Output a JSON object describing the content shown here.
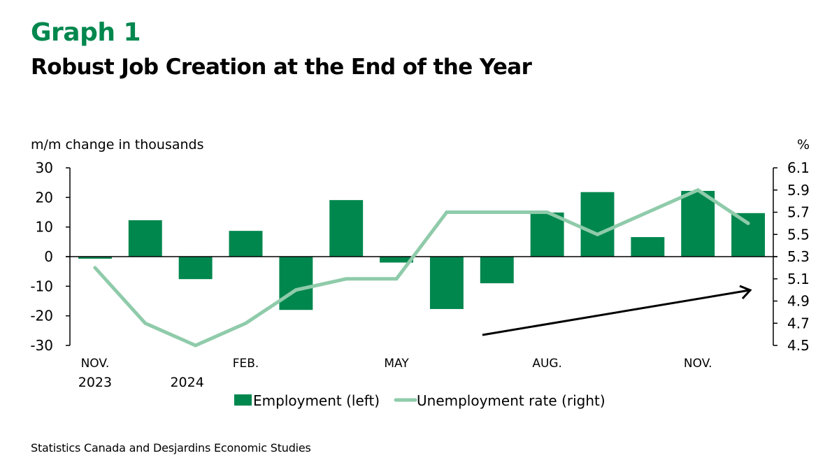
{
  "header": {
    "label": "Graph 1",
    "title": "Robust Job Creation at the End of the Year"
  },
  "source": "Statistics Canada and Desjardins Economic Studies",
  "colors": {
    "bars": "#00874E",
    "line": "#8FCBAA",
    "title_accent": "#00874E"
  },
  "chart_data": {
    "type": "bar+line",
    "title": "Robust Job Creation at the End of the Year",
    "categories": [
      "Nov 2023",
      "Dec 2023",
      "Jan 2024",
      "Feb 2024",
      "Mar 2024",
      "Apr 2024",
      "May 2024",
      "Jun 2024",
      "Jul 2024",
      "Aug 2024",
      "Sep 2024",
      "Oct 2024",
      "Nov 2024",
      "Dec 2024"
    ],
    "x_tick_labels": [
      {
        "index": 0,
        "lines": [
          "NOV.",
          "2023"
        ]
      },
      {
        "index": 2,
        "lines": [
          "",
          "2024"
        ]
      },
      {
        "index": 3,
        "lines": [
          "FEB.",
          ""
        ]
      },
      {
        "index": 6,
        "lines": [
          "MAY",
          ""
        ]
      },
      {
        "index": 9,
        "lines": [
          "AUG.",
          ""
        ]
      },
      {
        "index": 12,
        "lines": [
          "NOV.",
          ""
        ]
      }
    ],
    "series": [
      {
        "name": "Employment (left)",
        "type": "bar",
        "axis": "left",
        "values": [
          -0.7,
          12.3,
          -7.6,
          8.7,
          -18.0,
          19.1,
          -2.0,
          -17.7,
          -9.0,
          14.9,
          21.8,
          6.6,
          22.2,
          14.7
        ]
      },
      {
        "name": "Unemployment rate (right)",
        "type": "line",
        "axis": "right",
        "values": [
          5.2,
          4.7,
          4.5,
          4.7,
          5.0,
          5.1,
          5.1,
          5.7,
          5.7,
          5.7,
          5.5,
          5.7,
          5.9,
          5.6
        ]
      }
    ],
    "left_axis": {
      "label": "m/m change in thousands",
      "range": [
        -30,
        30
      ],
      "ticks": [
        30,
        20,
        10,
        0,
        -10,
        -20,
        -30
      ]
    },
    "right_axis": {
      "label": "%",
      "range": [
        4.5,
        6.1
      ],
      "ticks": [
        "6.1",
        "5.9",
        "5.7",
        "5.5",
        "5.3",
        "5.1",
        "4.9",
        "4.7",
        "4.5"
      ]
    },
    "legend": {
      "position": "bottom",
      "entries": [
        "Employment (left)",
        "Unemployment rate (right)"
      ]
    },
    "annotations": [
      {
        "type": "arrow",
        "description": "upward trend arrow from Jul to Dec 2024"
      }
    ],
    "grid": false
  }
}
